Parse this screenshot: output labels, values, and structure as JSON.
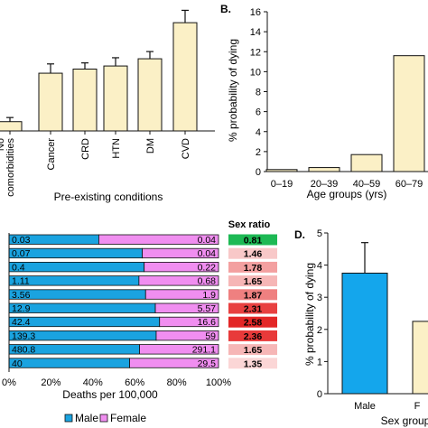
{
  "chart_data": [
    {
      "type": "bar",
      "panel": "A",
      "xlabel": "Pre-existing conditions",
      "categories": [
        "No comorbidities",
        "Cancer",
        "CRD",
        "HTN",
        "DM",
        "CVD"
      ],
      "category_lines": [
        [
          "No",
          "comorbidities"
        ],
        [
          "Cancer"
        ],
        [
          "CRD"
        ],
        [
          "HTN"
        ],
        [
          "DM"
        ],
        [
          "CVD"
        ]
      ],
      "values": [
        0.9,
        5.6,
        6.0,
        6.3,
        7.0,
        10.5
      ],
      "errors": [
        0.4,
        0.9,
        0.6,
        0.8,
        0.7,
        1.2
      ],
      "ylim": [
        0,
        12
      ],
      "bar_color": "#fbf0c6",
      "grid": false
    },
    {
      "type": "bar",
      "panel": "B",
      "panel_label": "B.",
      "xlabel": "Age groups (yrs)",
      "ylabel": "% probability of dying",
      "categories": [
        "0–19",
        "20–39",
        "40–59",
        "60–79"
      ],
      "values": [
        0.2,
        0.4,
        1.7,
        11.6
      ],
      "ylim": [
        0,
        16
      ],
      "yticks": [
        0,
        2,
        4,
        6,
        8,
        10,
        12,
        14,
        16
      ],
      "bar_color": "#fbf0c6",
      "grid": false
    },
    {
      "type": "bar",
      "panel": "C",
      "orientation": "horizontal-stacked-percent",
      "xlabel": "Deaths per 100,000",
      "xticks": [
        "0%",
        "20%",
        "40%",
        "60%",
        "80%",
        "100%"
      ],
      "series": [
        {
          "name": "Male",
          "color": "#1aa3e0",
          "labels": [
            "0.03",
            "0.07",
            "0.4",
            "1.11",
            "3.56",
            "12.9",
            "42.4",
            "139.3",
            "480.8",
            "40"
          ],
          "values": [
            0.03,
            0.07,
            0.4,
            1.11,
            3.56,
            12.9,
            42.4,
            139.3,
            480.8,
            40
          ]
        },
        {
          "name": "Female",
          "color": "#f08ef0",
          "labels": [
            "0.04",
            "0.04",
            "0.22",
            "0.68",
            "1.9",
            "5.57",
            "16.6",
            "59",
            "291.1",
            "29.5"
          ],
          "values": [
            0.04,
            0.04,
            0.22,
            0.68,
            1.9,
            5.57,
            16.6,
            59,
            291.1,
            29.5
          ]
        }
      ],
      "ratio_header": "Sex ratio",
      "sex_ratio": [
        "0.81",
        "1.46",
        "1.78",
        "1.65",
        "1.87",
        "2.31",
        "2.58",
        "2.36",
        "1.65",
        "1.35"
      ],
      "ratio_colors": [
        "#1db954",
        "#f8c8c8",
        "#f3a0a0",
        "#f6b6b6",
        "#ef8080",
        "#e84040",
        "#e32626",
        "#e83a3a",
        "#f6b6b6",
        "#fbd6d6"
      ],
      "legend": [
        "Male",
        "Female"
      ],
      "legend_position": "bottom"
    },
    {
      "type": "bar",
      "panel": "D",
      "panel_label": "D.",
      "ylabel": "% probability of dying",
      "xlabel": "Sex groups",
      "categories": [
        "Male",
        "Female"
      ],
      "tick_labels": [
        "Male",
        "F"
      ],
      "values": [
        3.75,
        2.25
      ],
      "errors": [
        0.95,
        0
      ],
      "ylim": [
        0,
        5
      ],
      "yticks": [
        0,
        1,
        2,
        3,
        4,
        5
      ],
      "colors": [
        "#14a6ec",
        "#fbf0c6"
      ],
      "grid": false
    }
  ]
}
